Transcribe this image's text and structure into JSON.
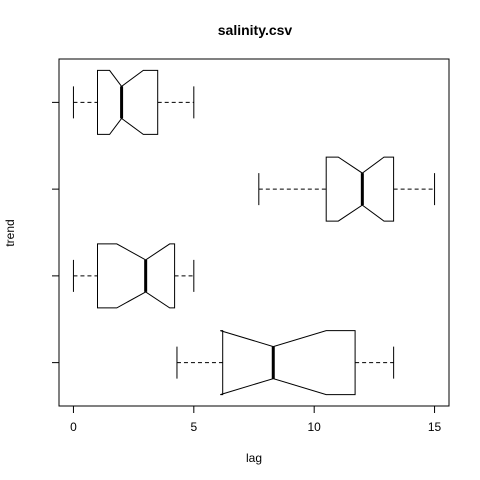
{
  "chart_data": {
    "type": "boxplot",
    "orientation": "horizontal",
    "notched": true,
    "title": "salinity.csv",
    "xlabel": "lag",
    "ylabel": "trend",
    "xlim": [
      -0.6,
      15.6
    ],
    "xticks": [
      0,
      5,
      10,
      15
    ],
    "xtick_labels": [
      "0",
      "5",
      "10",
      "15"
    ],
    "legend": "none",
    "grid": false,
    "boxes": [
      {
        "level": 1,
        "min": 4.3,
        "q1": 6.2,
        "median": 8.3,
        "q3": 11.7,
        "max": 13.3,
        "notch_low": 6.1,
        "notch_high": 10.5
      },
      {
        "level": 2,
        "min": 0,
        "q1": 1.0,
        "median": 3.0,
        "q3": 4.2,
        "max": 5.0,
        "notch_low": 1.8,
        "notch_high": 4.0
      },
      {
        "level": 3,
        "min": 7.7,
        "q1": 10.5,
        "median": 12.0,
        "q3": 13.3,
        "max": 15.0,
        "notch_low": 11.0,
        "notch_high": 12.9
      },
      {
        "level": 4,
        "min": 0,
        "q1": 1.0,
        "median": 2.0,
        "q3": 3.5,
        "max": 5.0,
        "notch_low": 1.5,
        "notch_high": 2.9
      }
    ]
  }
}
